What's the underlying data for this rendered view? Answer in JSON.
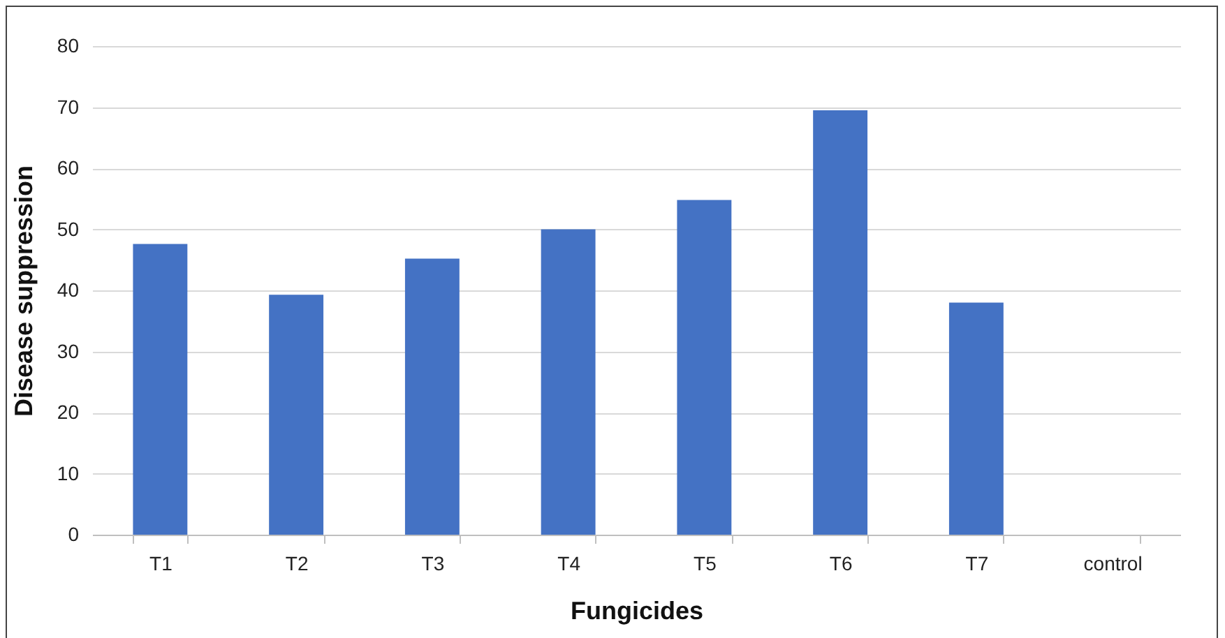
{
  "chart_data": {
    "type": "bar",
    "xlabel": "Fungicides",
    "ylabel": "Disease suppression",
    "categories": [
      "T1",
      "T2",
      "T3",
      "T4",
      "T5",
      "T6",
      "T7",
      "control"
    ],
    "values": [
      47.6,
      39.3,
      45.2,
      50,
      54.8,
      69.5,
      38.0,
      0
    ],
    "color": "#4472c4",
    "ylim": [
      0,
      80
    ],
    "yticks": [
      0,
      10,
      20,
      30,
      40,
      50,
      60,
      70,
      80
    ],
    "grid": "y"
  }
}
